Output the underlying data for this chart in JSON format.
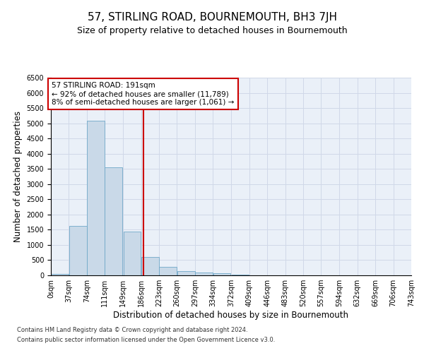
{
  "title": "57, STIRLING ROAD, BOURNEMOUTH, BH3 7JH",
  "subtitle": "Size of property relative to detached houses in Bournemouth",
  "xlabel": "Distribution of detached houses by size in Bournemouth",
  "ylabel": "Number of detached properties",
  "footnote1": "Contains HM Land Registry data © Crown copyright and database right 2024.",
  "footnote2": "Contains public sector information licensed under the Open Government Licence v3.0.",
  "annotation_line1": "57 STIRLING ROAD: 191sqm",
  "annotation_line2": "← 92% of detached houses are smaller (11,789)",
  "annotation_line3": "8% of semi-detached houses are larger (1,061) →",
  "bin_edges": [
    0,
    37,
    74,
    111,
    149,
    186,
    223,
    260,
    297,
    334,
    372,
    409,
    446,
    483,
    520,
    557,
    594,
    632,
    669,
    706,
    743
  ],
  "bin_labels": [
    "0sqm",
    "37sqm",
    "74sqm",
    "111sqm",
    "149sqm",
    "186sqm",
    "223sqm",
    "260sqm",
    "297sqm",
    "334sqm",
    "372sqm",
    "409sqm",
    "446sqm",
    "483sqm",
    "520sqm",
    "557sqm",
    "594sqm",
    "632sqm",
    "669sqm",
    "706sqm",
    "743sqm"
  ],
  "bar_heights": [
    50,
    1620,
    5080,
    3560,
    1430,
    600,
    290,
    130,
    100,
    70,
    20,
    5,
    2,
    1,
    0,
    0,
    0,
    0,
    0,
    0
  ],
  "bar_color": "#c9d9e8",
  "bar_edge_color": "#6fa8c8",
  "vline_color": "#cc0000",
  "vline_x": 191,
  "ylim": [
    0,
    6500
  ],
  "yticks": [
    0,
    500,
    1000,
    1500,
    2000,
    2500,
    3000,
    3500,
    4000,
    4500,
    5000,
    5500,
    6000,
    6500
  ],
  "grid_color": "#d0d8e8",
  "background_color": "#eaf0f8",
  "title_fontsize": 11,
  "subtitle_fontsize": 9,
  "axis_label_fontsize": 8.5,
  "tick_fontsize": 7,
  "annotation_fontsize": 7.5,
  "footnote_fontsize": 6
}
